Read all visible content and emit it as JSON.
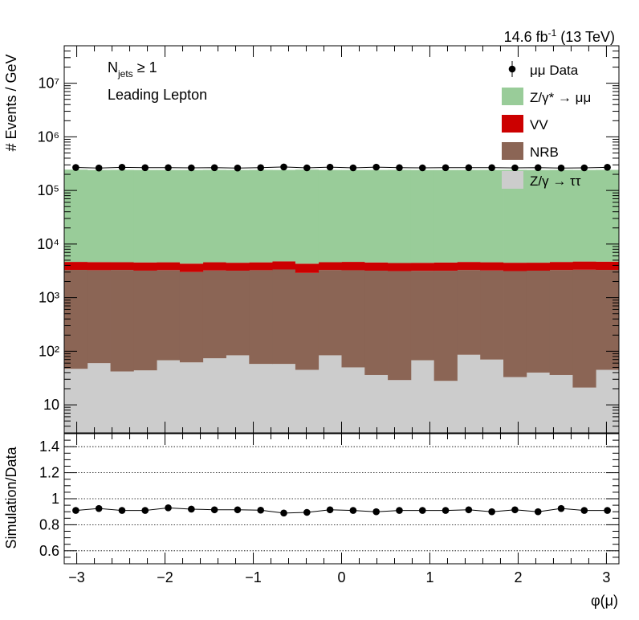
{
  "header": {
    "lumi_value": "14.6 fb",
    "lumi_exp": "-1",
    "lumi_energy": " (13 TeV)"
  },
  "annotations": {
    "njets_main": "N",
    "njets_sub": "jets",
    "njets_cond": " ≥ 1",
    "region": "Leading Lepton"
  },
  "legend": [
    {
      "name": "data",
      "label": "μμ Data",
      "color": "#000000",
      "kind": "marker"
    },
    {
      "name": "zmumu",
      "label": "Z/γ* → μμ",
      "color": "#99cc99",
      "kind": "fill"
    },
    {
      "name": "vv",
      "label": "VV",
      "color": "#cc0000",
      "kind": "fill"
    },
    {
      "name": "nrb",
      "label": "NRB",
      "color": "#8b6555",
      "kind": "fill"
    },
    {
      "name": "ztautau",
      "label": "Z/γ → ττ",
      "color": "#cccccc",
      "kind": "fill"
    }
  ],
  "chart_data": [
    {
      "type": "bar",
      "stacked": true,
      "ylabel": "# Events / GeV",
      "yscale": "log",
      "ylim": [
        3,
        50000000
      ],
      "xlim": [
        -3.1416,
        3.1416
      ],
      "y_tick_labels": [
        "10",
        "10²",
        "10³",
        "10⁴",
        "10⁵",
        "10⁶",
        "10⁷"
      ],
      "bin_edges": [
        -3.1416,
        -2.8798,
        -2.618,
        -2.3562,
        -2.0944,
        -1.8326,
        -1.5708,
        -1.309,
        -1.0472,
        -0.7854,
        -0.5236,
        -0.2618,
        0.0,
        0.2618,
        0.5236,
        0.7854,
        1.0472,
        1.309,
        1.5708,
        1.8326,
        2.0944,
        2.3562,
        2.618,
        2.8798,
        3.1416
      ],
      "series": [
        {
          "name": "Z/γ → ττ",
          "color": "#cccccc",
          "values": [
            47,
            60,
            42,
            44,
            68,
            62,
            74,
            84,
            58,
            58,
            45,
            84,
            50,
            36,
            29,
            68,
            28,
            86,
            70,
            33,
            40,
            36,
            21,
            45
          ]
        },
        {
          "name": "NRB",
          "color": "#8b6555",
          "values": [
            3250,
            3200,
            3250,
            3150,
            3200,
            2950,
            3150,
            3100,
            3200,
            3300,
            2850,
            3200,
            3200,
            3150,
            3100,
            3100,
            3150,
            3200,
            3150,
            3100,
            3150,
            3250,
            3300,
            3250
          ]
        },
        {
          "name": "VV",
          "color": "#cc0000",
          "values": [
            1350,
            1350,
            1300,
            1350,
            1300,
            1300,
            1350,
            1300,
            1300,
            1400,
            1400,
            1300,
            1400,
            1350,
            1300,
            1300,
            1350,
            1350,
            1350,
            1350,
            1300,
            1350,
            1400,
            1400
          ]
        },
        {
          "name": "Z/γ* → μμ",
          "color": "#99cc99",
          "values": [
            240000,
            236000,
            237000,
            236000,
            236000,
            236000,
            237000,
            236000,
            237000,
            236000,
            240000,
            236000,
            236000,
            236000,
            237000,
            236000,
            236000,
            236000,
            237000,
            237000,
            236000,
            237000,
            236000,
            237000
          ]
        }
      ],
      "data": {
        "name": "μμ Data",
        "values": [
          268000,
          262000,
          270000,
          266000,
          266000,
          264000,
          266000,
          262000,
          266000,
          274000,
          264000,
          272000,
          264000,
          272000,
          266000,
          264000,
          266000,
          266000,
          266000,
          264000,
          266000,
          262000,
          264000,
          270000
        ]
      }
    },
    {
      "type": "scatter",
      "ylabel": "Simulation/Data",
      "xlabel": "φ(μ)",
      "ylim": [
        0.5,
        1.5
      ],
      "xlim": [
        -3.1416,
        3.1416
      ],
      "x_ticks": [
        -3,
        -2,
        -1,
        0,
        1,
        2,
        3
      ],
      "y_ticks": [
        0.6,
        0.8,
        1,
        1.2,
        1.4
      ],
      "grid_lines": [
        0.6,
        0.8,
        1.0,
        1.2,
        1.4
      ],
      "values": [
        0.91,
        0.925,
        0.91,
        0.91,
        0.93,
        0.92,
        0.915,
        0.915,
        0.912,
        0.89,
        0.895,
        0.915,
        0.91,
        0.9,
        0.91,
        0.91,
        0.91,
        0.915,
        0.9,
        0.915,
        0.9,
        0.925,
        0.91,
        0.91
      ]
    }
  ]
}
